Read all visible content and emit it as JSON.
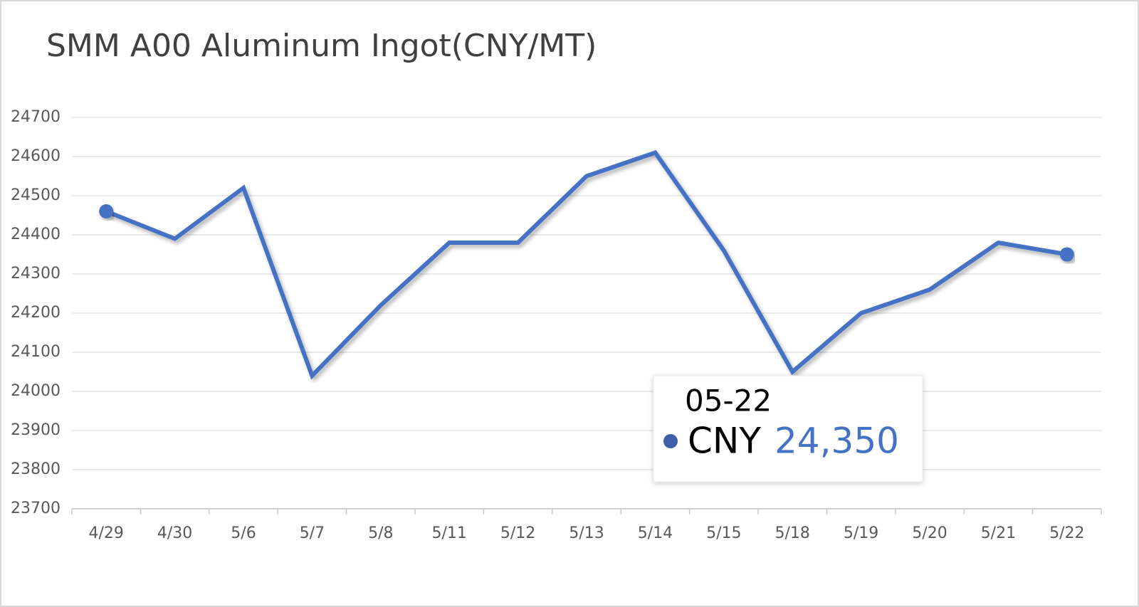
{
  "chart_data": {
    "type": "line",
    "title": "SMM A00 Aluminum Ingot(CNY/MT)",
    "categories": [
      "4/29",
      "4/30",
      "5/6",
      "5/7",
      "5/8",
      "5/11",
      "5/12",
      "5/13",
      "5/14",
      "5/15",
      "5/18",
      "5/19",
      "5/20",
      "5/21",
      "5/22"
    ],
    "series": [
      {
        "name": "CNY",
        "color": "#4472c4",
        "values": [
          24460,
          24390,
          24520,
          24040,
          24220,
          24380,
          24380,
          24550,
          24610,
          24360,
          24050,
          24200,
          24260,
          24380,
          24350
        ]
      }
    ],
    "ylim": [
      23700,
      24700
    ],
    "yticks": [
      23700,
      23800,
      23900,
      24000,
      24100,
      24200,
      24300,
      24400,
      24500,
      24600,
      24700
    ],
    "grid": true,
    "tooltip": {
      "x": "05-22",
      "value_label": "24,350"
    }
  }
}
